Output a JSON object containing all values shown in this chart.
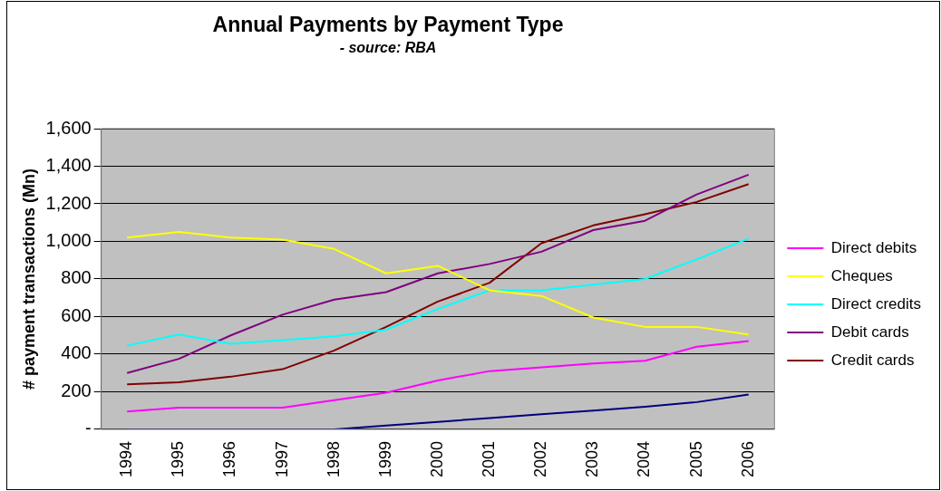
{
  "chart_data": {
    "type": "line",
    "title": "Annual Payments by Payment Type",
    "subtitle": "- source: RBA",
    "ylabel": "# payment transactions (Mn)",
    "categories": [
      "1994",
      "1995",
      "1996",
      "1997",
      "1998",
      "1999",
      "2000",
      "2001",
      "2002",
      "2003",
      "2004",
      "2005",
      "2006"
    ],
    "ylim": [
      0,
      1600
    ],
    "yticks": [
      {
        "value": 0,
        "label": "-"
      },
      {
        "value": 200,
        "label": "200"
      },
      {
        "value": 400,
        "label": "400"
      },
      {
        "value": 600,
        "label": "600"
      },
      {
        "value": 800,
        "label": "800"
      },
      {
        "value": 1000,
        "label": "1,000"
      },
      {
        "value": 1200,
        "label": "1,200"
      },
      {
        "value": 1400,
        "label": "1,400"
      },
      {
        "value": 1600,
        "label": "1,600"
      }
    ],
    "grid": "y",
    "legend": "right",
    "marker": "none",
    "line_style": "solid",
    "series": [
      {
        "color": "#000080",
        "values": [
          0,
          0,
          0,
          0,
          0,
          20,
          40,
          60,
          80,
          100,
          120,
          145,
          185
        ]
      },
      {
        "name": "Direct debits",
        "color": "#ff00ff",
        "values": [
          95,
          115,
          115,
          115,
          155,
          195,
          260,
          310,
          330,
          350,
          365,
          440,
          470
        ]
      },
      {
        "name": "Cheques",
        "color": "#ffff00",
        "values": [
          1020,
          1050,
          1020,
          1010,
          960,
          830,
          870,
          740,
          710,
          595,
          545,
          545,
          505
        ]
      },
      {
        "name": "Direct credits",
        "color": "#00ffff",
        "values": [
          445,
          505,
          455,
          475,
          495,
          530,
          640,
          740,
          740,
          770,
          800,
          905,
          1015
        ]
      },
      {
        "name": "Debit cards",
        "color": "#800080",
        "values": [
          300,
          375,
          500,
          610,
          690,
          730,
          830,
          880,
          945,
          1060,
          1110,
          1250,
          1355
        ]
      },
      {
        "name": "Credit cards",
        "color": "#800000",
        "values": [
          240,
          250,
          280,
          320,
          420,
          545,
          680,
          780,
          990,
          1085,
          1145,
          1210,
          1305
        ]
      }
    ]
  }
}
